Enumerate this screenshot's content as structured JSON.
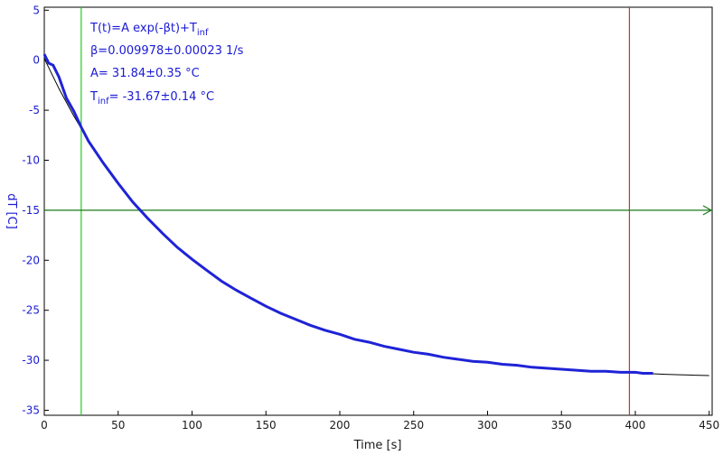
{
  "chart_data": {
    "type": "line",
    "xlabel": "Time [s]",
    "ylabel": "dT [C]",
    "xlim": [
      0,
      452
    ],
    "ylim": [
      -35.5,
      5.3
    ],
    "x_ticks": [
      0,
      50,
      100,
      150,
      200,
      250,
      300,
      350,
      400,
      450
    ],
    "y_ticks": [
      5,
      0,
      -5,
      -10,
      -15,
      -20,
      -25,
      -30,
      -35
    ],
    "model": {
      "A": 31.84,
      "beta": 0.009978,
      "T_inf": -31.67
    },
    "fit_range": [
      25,
      396
    ],
    "data_end": 412,
    "series": [
      {
        "role": "fit_curve",
        "color": "#000000",
        "x": [
          0,
          10,
          20,
          30,
          40,
          50,
          60,
          70,
          80,
          90,
          100,
          110,
          120,
          130,
          140,
          150,
          160,
          170,
          180,
          190,
          200,
          210,
          220,
          230,
          240,
          250,
          260,
          270,
          280,
          290,
          300,
          310,
          320,
          330,
          340,
          350,
          360,
          370,
          380,
          390,
          400,
          410,
          420,
          430,
          440,
          450
        ],
        "y": [
          0.17,
          -2.85,
          -5.58,
          -8.06,
          -10.3,
          -12.33,
          -14.17,
          -15.83,
          -17.34,
          -18.71,
          -19.95,
          -21.07,
          -22.09,
          -23.01,
          -23.84,
          -24.6,
          -25.28,
          -25.91,
          -26.47,
          -26.98,
          -27.44,
          -27.86,
          -28.24,
          -28.58,
          -28.89,
          -29.17,
          -29.43,
          -29.66,
          -29.87,
          -30.06,
          -30.23,
          -30.39,
          -30.53,
          -30.66,
          -30.77,
          -30.88,
          -30.98,
          -31.07,
          -31.14,
          -31.22,
          -31.28,
          -31.34,
          -31.4,
          -31.45,
          -31.49,
          -31.53
        ]
      },
      {
        "role": "measured_data",
        "color": "#1f23d6",
        "x": [
          0,
          3,
          6,
          10,
          15,
          20,
          25,
          30,
          40,
          50,
          60,
          70,
          80,
          90,
          100,
          110,
          120,
          130,
          140,
          150,
          160,
          170,
          180,
          190,
          200,
          210,
          220,
          230,
          240,
          250,
          260,
          270,
          280,
          290,
          300,
          310,
          320,
          330,
          340,
          350,
          360,
          370,
          380,
          390,
          400,
          405,
          412
        ],
        "y": [
          0.6,
          -0.3,
          -0.5,
          -1.7,
          -3.8,
          -5.1,
          -6.7,
          -8.1,
          -10.3,
          -12.3,
          -14.2,
          -15.8,
          -17.3,
          -18.7,
          -19.9,
          -21.0,
          -22.1,
          -23.0,
          -23.8,
          -24.6,
          -25.3,
          -25.9,
          -26.5,
          -27.0,
          -27.4,
          -27.9,
          -28.2,
          -28.6,
          -28.9,
          -29.2,
          -29.4,
          -29.7,
          -29.9,
          -30.1,
          -30.2,
          -30.4,
          -30.5,
          -30.7,
          -30.8,
          -30.9,
          -31.0,
          -31.1,
          -31.1,
          -31.2,
          -31.2,
          -31.3,
          -31.3
        ]
      }
    ],
    "markers": {
      "left_vline": {
        "x": 25,
        "color": "#22cc22"
      },
      "right_vline": {
        "x": 396,
        "color": "#c0392b"
      },
      "hline": {
        "y": -15,
        "color": "#1a7a1a"
      }
    },
    "annotations": {
      "line1_main": "T(t)=A exp(-βt)+T",
      "line1_sub": "inf",
      "line2": "β=0.009978±0.00023 1/s",
      "line3": "A= 31.84±0.35 °C",
      "line4_main": "T",
      "line4_sub": "inf",
      "line4_rest": "= -31.67±0.14 °C"
    }
  }
}
